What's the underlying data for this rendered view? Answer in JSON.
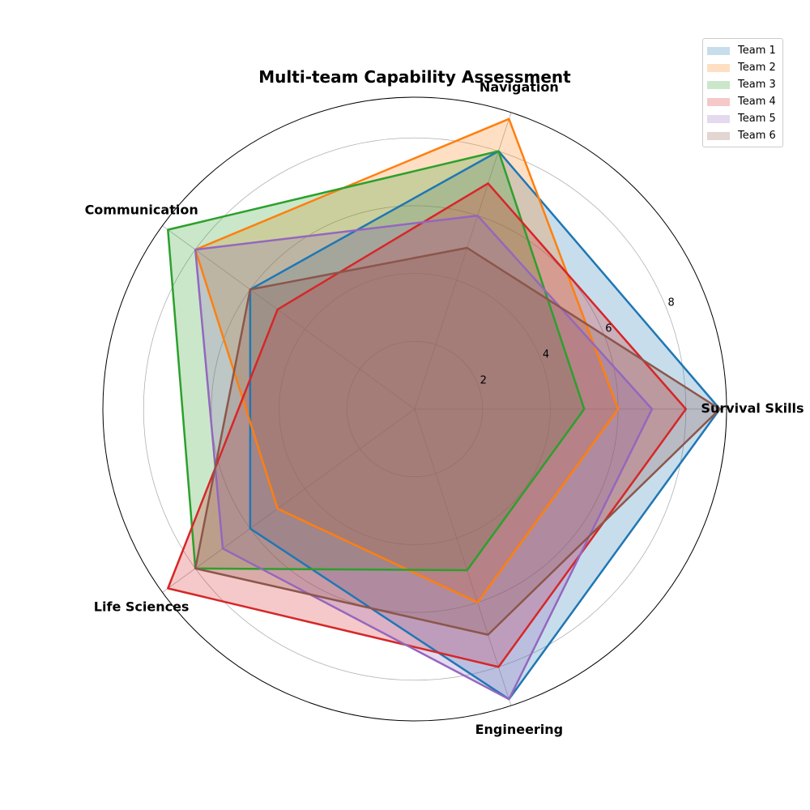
{
  "chart_data": {
    "type": "radar",
    "title": "Multi-team Capability Assessment",
    "categories": [
      "Survival Skills",
      "Navigation",
      "Communication",
      "Life Sciences",
      "Engineering"
    ],
    "rlim": [
      0,
      9.2
    ],
    "radial_ticks": [
      2,
      4,
      6,
      8
    ],
    "radial_tick_labels": [
      "2",
      "4",
      "6",
      "8"
    ],
    "grid": true,
    "legend_position": "top-right",
    "series": [
      {
        "name": "Team 1",
        "values": [
          9,
          8,
          6,
          6,
          9
        ],
        "color": "#1f77b4"
      },
      {
        "name": "Team 2",
        "values": [
          6,
          9,
          8,
          5,
          6
        ],
        "color": "#ff7f0e"
      },
      {
        "name": "Team 3",
        "values": [
          5,
          8,
          9,
          8,
          5
        ],
        "color": "#2ca02c"
      },
      {
        "name": "Team 4",
        "values": [
          8,
          7,
          5,
          9,
          8
        ],
        "color": "#d62728"
      },
      {
        "name": "Team 5",
        "values": [
          7,
          6,
          8,
          7,
          9
        ],
        "color": "#9467bd"
      },
      {
        "name": "Team 6",
        "values": [
          9,
          5,
          6,
          8,
          7
        ],
        "color": "#8c564b"
      }
    ]
  }
}
